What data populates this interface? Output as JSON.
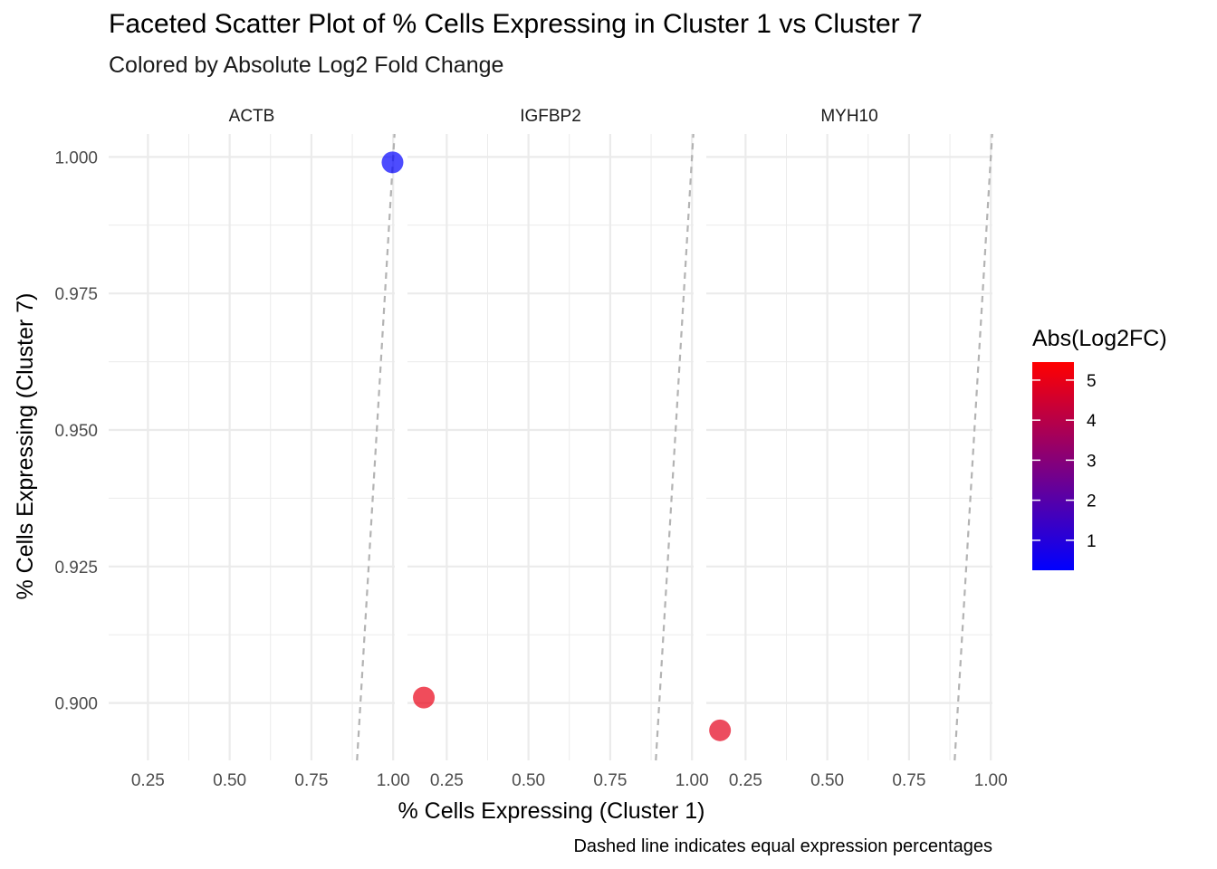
{
  "chart_data": {
    "type": "scatter",
    "title": "Faceted Scatter Plot of % Cells Expressing in Cluster 1 vs Cluster 7",
    "subtitle": "Colored by Absolute Log2 Fold Change",
    "xlabel": "% Cells Expressing (Cluster 1)",
    "ylabel": "% Cells Expressing (Cluster 7)",
    "caption": "Dashed line indicates equal expression percentages",
    "xlim": [
      0.13,
      1.005
    ],
    "ylim": [
      0.8895,
      1.0042
    ],
    "x_ticks": [
      "0.25",
      "0.50",
      "0.75",
      "1.00"
    ],
    "x_tick_values": [
      0.25,
      0.5,
      0.75,
      1.0
    ],
    "y_ticks": [
      "0.900",
      "0.925",
      "0.950",
      "0.975",
      "1.000"
    ],
    "y_tick_values": [
      0.9,
      0.925,
      0.95,
      0.975,
      1.0
    ],
    "grid": true,
    "reference_line": "y = x (dashed grey)",
    "facets": [
      {
        "label": "ACTB",
        "points": [
          {
            "x": 0.998,
            "y": 0.999,
            "abs_log2fc": 0.3
          }
        ]
      },
      {
        "label": "IGFBP2",
        "points": [
          {
            "x": 0.18,
            "y": 0.901,
            "abs_log2fc": 5.0
          }
        ]
      },
      {
        "label": "MYH10",
        "points": [
          {
            "x": 0.172,
            "y": 0.895,
            "abs_log2fc": 4.9
          }
        ]
      }
    ],
    "legend": {
      "title": "Abs(Log2FC)",
      "placement": "right",
      "ticks": [
        "1",
        "2",
        "3",
        "4",
        "5"
      ],
      "tick_values": [
        1,
        2,
        3,
        4,
        5
      ],
      "range": [
        0.25,
        5.45
      ],
      "low_color": "#0000FF",
      "high_color": "#FF0000"
    },
    "reference_line_color": "#b3b3b3",
    "grid_color": "#ebebeb"
  }
}
